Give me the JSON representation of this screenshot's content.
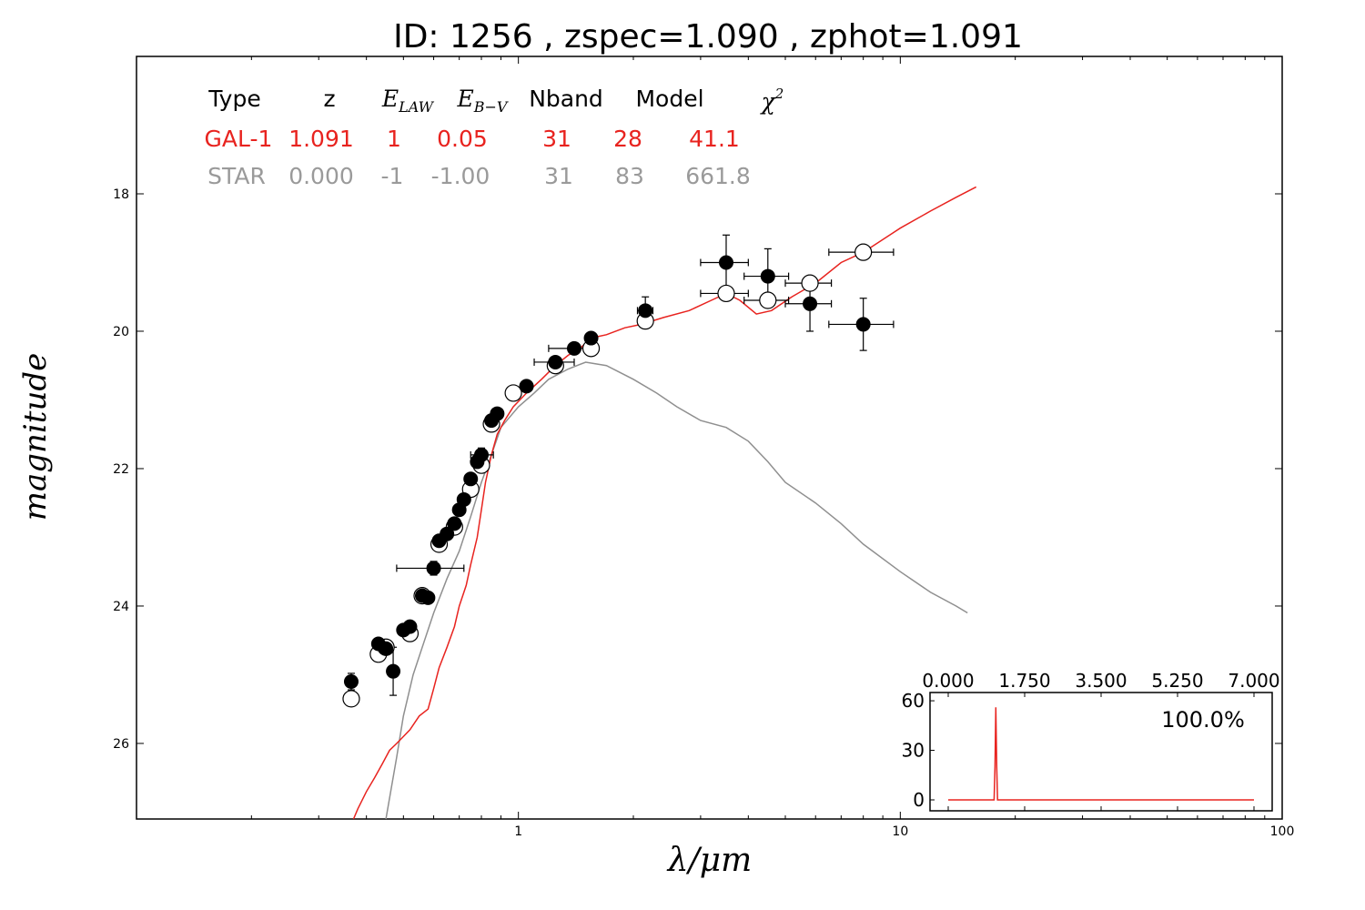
{
  "chart_data": [
    {
      "type": "scatter",
      "title": "ID:  1256  , zspec=1.090 , zphot=1.091",
      "xlabel": "λ/μm",
      "ylabel": "magnitude",
      "xscale": "log",
      "xlim": [
        0.1,
        100
      ],
      "ylim": [
        27.1,
        16.0
      ],
      "y_inverted": true,
      "xtick_labels": [
        "1",
        "10",
        "100"
      ],
      "ytick_labels": [
        "18",
        "20",
        "22",
        "24",
        "26"
      ],
      "fit_table": {
        "headers": [
          "Type",
          "z",
          "E_LAW",
          "E_B−V",
          "Nband",
          "Model",
          "χ²"
        ],
        "rows": [
          {
            "type": "GAL-1",
            "z": "1.091",
            "elaw": "1",
            "ebv": "0.05",
            "nband": "31",
            "model": "28",
            "chi2": "41.1",
            "color": "#e8231f"
          },
          {
            "type": "STAR",
            "z": "0.000",
            "elaw": "-1",
            "ebv": "-1.00",
            "nband": "31",
            "model": "83",
            "chi2": "661.8",
            "color": "#9a9a9a"
          }
        ]
      },
      "series": [
        {
          "kind": "galaxy-template",
          "color": "#e8231f",
          "points": [
            [
              0.37,
              27.1
            ],
            [
              0.38,
              26.95
            ],
            [
              0.4,
              26.7
            ],
            [
              0.42,
              26.5
            ],
            [
              0.44,
              26.3
            ],
            [
              0.46,
              26.1
            ],
            [
              0.48,
              26.0
            ],
            [
              0.5,
              25.9
            ],
            [
              0.52,
              25.8
            ],
            [
              0.55,
              25.6
            ],
            [
              0.58,
              25.5
            ],
            [
              0.6,
              25.2
            ],
            [
              0.62,
              24.9
            ],
            [
              0.65,
              24.6
            ],
            [
              0.68,
              24.3
            ],
            [
              0.7,
              24.0
            ],
            [
              0.73,
              23.7
            ],
            [
              0.75,
              23.4
            ],
            [
              0.78,
              23.0
            ],
            [
              0.8,
              22.6
            ],
            [
              0.82,
              22.2
            ],
            [
              0.85,
              21.8
            ],
            [
              0.88,
              21.5
            ],
            [
              0.92,
              21.3
            ],
            [
              0.97,
              21.1
            ],
            [
              1.05,
              20.9
            ],
            [
              1.15,
              20.7
            ],
            [
              1.25,
              20.5
            ],
            [
              1.35,
              20.35
            ],
            [
              1.45,
              20.25
            ],
            [
              1.55,
              20.1
            ],
            [
              1.7,
              20.05
            ],
            [
              1.9,
              19.95
            ],
            [
              2.1,
              19.9
            ],
            [
              2.4,
              19.8
            ],
            [
              2.8,
              19.7
            ],
            [
              3.2,
              19.55
            ],
            [
              3.5,
              19.45
            ],
            [
              3.8,
              19.55
            ],
            [
              4.2,
              19.75
            ],
            [
              4.6,
              19.7
            ],
            [
              5.2,
              19.5
            ],
            [
              6.0,
              19.3
            ],
            [
              7.0,
              19.0
            ],
            [
              8.0,
              18.85
            ],
            [
              10.0,
              18.5
            ],
            [
              12.0,
              18.25
            ],
            [
              14.0,
              18.05
            ],
            [
              15.8,
              17.9
            ]
          ]
        },
        {
          "kind": "star-template",
          "color": "#8f8f8f",
          "points": [
            [
              0.45,
              27.1
            ],
            [
              0.48,
              26.2
            ],
            [
              0.5,
              25.6
            ],
            [
              0.53,
              25.0
            ],
            [
              0.56,
              24.6
            ],
            [
              0.6,
              24.1
            ],
            [
              0.65,
              23.6
            ],
            [
              0.7,
              23.2
            ],
            [
              0.75,
              22.7
            ],
            [
              0.8,
              22.2
            ],
            [
              0.85,
              21.8
            ],
            [
              0.9,
              21.4
            ],
            [
              1.0,
              21.1
            ],
            [
              1.1,
              20.9
            ],
            [
              1.2,
              20.7
            ],
            [
              1.35,
              20.55
            ],
            [
              1.5,
              20.45
            ],
            [
              1.7,
              20.5
            ],
            [
              2.0,
              20.7
            ],
            [
              2.3,
              20.9
            ],
            [
              2.6,
              21.1
            ],
            [
              3.0,
              21.3
            ],
            [
              3.5,
              21.4
            ],
            [
              4.0,
              21.6
            ],
            [
              4.5,
              21.9
            ],
            [
              5.0,
              22.2
            ],
            [
              6.0,
              22.5
            ],
            [
              7.0,
              22.8
            ],
            [
              8.0,
              23.1
            ],
            [
              10.0,
              23.5
            ],
            [
              12.0,
              23.8
            ],
            [
              14.0,
              24.0
            ],
            [
              15.0,
              24.1
            ]
          ]
        },
        {
          "kind": "observed",
          "marker": "filled-circle",
          "points": [
            [
              0.365,
              25.1
            ],
            [
              0.43,
              24.55
            ],
            [
              0.45,
              24.62
            ],
            [
              0.47,
              24.95
            ],
            [
              0.5,
              24.35
            ],
            [
              0.52,
              24.3
            ],
            [
              0.56,
              23.85
            ],
            [
              0.58,
              23.88
            ],
            [
              0.6,
              23.45
            ],
            [
              0.62,
              23.05
            ],
            [
              0.65,
              22.95
            ],
            [
              0.68,
              22.8
            ],
            [
              0.7,
              22.6
            ],
            [
              0.72,
              22.45
            ],
            [
              0.75,
              22.15
            ],
            [
              0.78,
              21.9
            ],
            [
              0.8,
              21.8
            ],
            [
              0.85,
              21.3
            ],
            [
              0.88,
              21.2
            ],
            [
              1.05,
              20.8
            ],
            [
              1.25,
              20.45
            ],
            [
              1.4,
              20.25
            ],
            [
              1.55,
              20.1
            ],
            [
              2.15,
              19.7
            ],
            [
              3.5,
              19.0
            ],
            [
              4.5,
              19.2
            ],
            [
              5.8,
              19.6
            ],
            [
              8.0,
              19.9
            ]
          ],
          "error_bars": [
            {
              "x": 0.365,
              "y": 25.1,
              "xerr": [
                0.355,
                0.375
              ],
              "yerr": 0.12
            },
            {
              "x": 0.47,
              "y": 24.95,
              "xerr": [
                0.46,
                0.48
              ],
              "yerr": 0.35
            },
            {
              "x": 0.6,
              "y": 23.45,
              "xerr": [
                0.48,
                0.72
              ],
              "yerr": 0.1
            },
            {
              "x": 0.8,
              "y": 21.8,
              "xerr": [
                0.75,
                0.86
              ],
              "yerr": 0.1
            },
            {
              "x": 1.25,
              "y": 20.45,
              "xerr": [
                1.1,
                1.4
              ],
              "yerr": 0.08
            },
            {
              "x": 1.4,
              "y": 20.25,
              "xerr": [
                1.2,
                1.6
              ],
              "yerr": 0.08
            },
            {
              "x": 2.15,
              "y": 19.7,
              "xerr": [
                2.05,
                2.25
              ],
              "yerr": 0.2
            },
            {
              "x": 3.5,
              "y": 19.0,
              "xerr": [
                3.0,
                4.0
              ],
              "yerr": 0.4
            },
            {
              "x": 4.5,
              "y": 19.2,
              "xerr": [
                3.9,
                5.1
              ],
              "yerr": 0.4
            },
            {
              "x": 5.8,
              "y": 19.6,
              "xerr": [
                5.0,
                6.6
              ],
              "yerr": 0.4
            },
            {
              "x": 8.0,
              "y": 19.9,
              "xerr": [
                6.5,
                9.6
              ],
              "yerr": 0.38
            }
          ]
        },
        {
          "kind": "model-fluxes",
          "marker": "open-circle",
          "points": [
            [
              0.365,
              25.35
            ],
            [
              0.43,
              24.7
            ],
            [
              0.45,
              24.6
            ],
            [
              0.52,
              24.4
            ],
            [
              0.56,
              23.85
            ],
            [
              0.62,
              23.1
            ],
            [
              0.68,
              22.85
            ],
            [
              0.75,
              22.3
            ],
            [
              0.8,
              21.95
            ],
            [
              0.85,
              21.35
            ],
            [
              0.97,
              20.9
            ],
            [
              1.25,
              20.5
            ],
            [
              1.55,
              20.25
            ],
            [
              2.15,
              19.85
            ],
            [
              3.5,
              19.45
            ],
            [
              4.5,
              19.55
            ],
            [
              5.8,
              19.3
            ],
            [
              8.0,
              18.85
            ]
          ],
          "error_bars": [
            {
              "x": 3.5,
              "y": 19.45,
              "xerr": [
                3.0,
                4.0
              ],
              "yerr": 0.05
            },
            {
              "x": 4.5,
              "y": 19.55,
              "xerr": [
                3.9,
                5.1
              ],
              "yerr": 0.05
            },
            {
              "x": 5.8,
              "y": 19.3,
              "xerr": [
                5.0,
                6.6
              ],
              "yerr": 0.05
            },
            {
              "x": 8.0,
              "y": 18.85,
              "xerr": [
                6.5,
                9.6
              ],
              "yerr": 0.05
            }
          ]
        }
      ]
    },
    {
      "type": "line",
      "role": "inset-pdz",
      "xlim": [
        0,
        7
      ],
      "ylim": [
        0,
        65
      ],
      "xtick_labels": [
        "0.000",
        "1.750",
        "3.500",
        "5.250",
        "7.000"
      ],
      "ytick_labels": [
        "0",
        "30",
        "60"
      ],
      "annotation": "100.0%",
      "color": "#e8231f",
      "series": [
        {
          "x": [
            0.0,
            1.05,
            1.07,
            1.09,
            1.11,
            1.13,
            7.0
          ],
          "values": [
            0,
            0,
            20,
            56,
            20,
            0,
            0
          ]
        }
      ]
    }
  ]
}
